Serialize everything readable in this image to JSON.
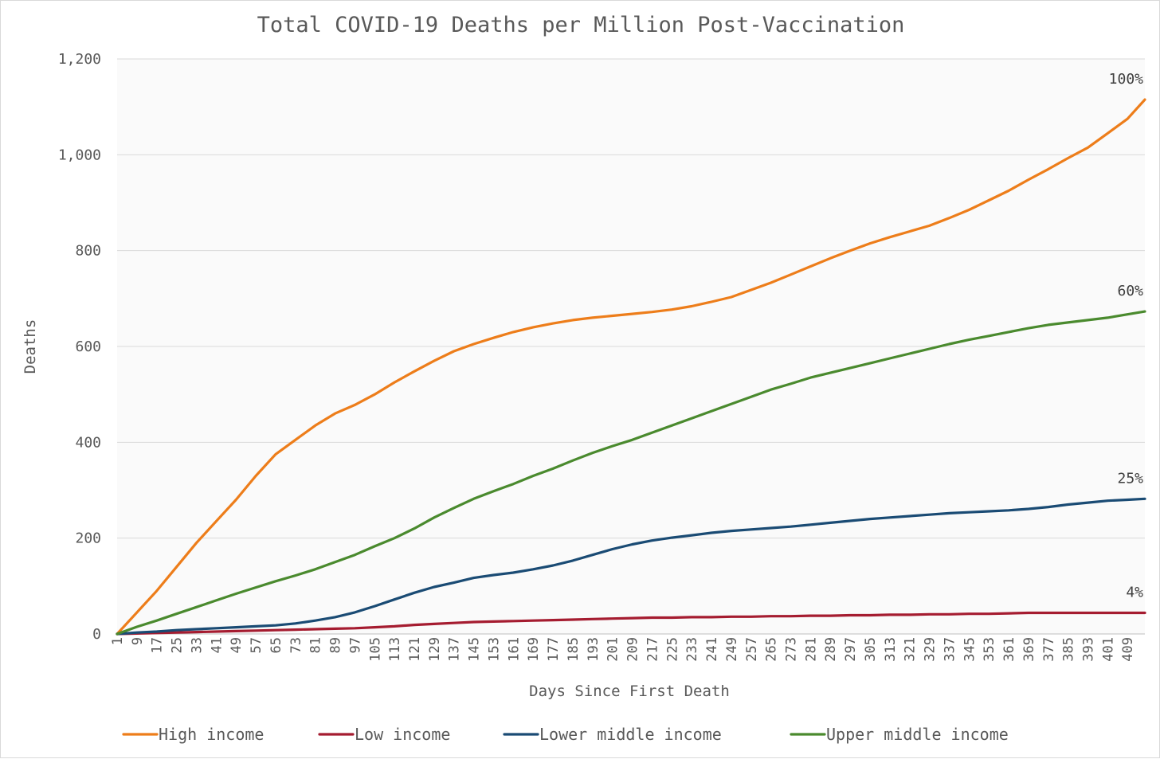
{
  "chart_data": {
    "type": "line",
    "title": "Total COVID-19 Deaths per Million Post-Vaccination",
    "xlabel": "Days Since First Death",
    "ylabel": "Deaths",
    "xlim": [
      1,
      416
    ],
    "ylim": [
      0,
      1200
    ],
    "y_ticks": [
      "0",
      "200",
      "400",
      "600",
      "800",
      "1,000",
      "1,200"
    ],
    "x_ticks": [
      "1",
      "9",
      "17",
      "25",
      "33",
      "41",
      "49",
      "57",
      "65",
      "73",
      "81",
      "89",
      "97",
      "105",
      "113",
      "121",
      "129",
      "137",
      "145",
      "153",
      "161",
      "169",
      "177",
      "185",
      "193",
      "201",
      "209",
      "217",
      "225",
      "233",
      "241",
      "249",
      "257",
      "265",
      "273",
      "281",
      "289",
      "297",
      "305",
      "313",
      "321",
      "329",
      "337",
      "345",
      "353",
      "361",
      "369",
      "377",
      "385",
      "393",
      "401",
      "409"
    ],
    "grid": true,
    "legend_position": "bottom",
    "series": [
      {
        "name": "High income",
        "color": "#ED7D1A",
        "end_label": "100%",
        "x": [
          1,
          9,
          17,
          25,
          33,
          41,
          49,
          57,
          65,
          73,
          81,
          89,
          97,
          105,
          113,
          121,
          129,
          137,
          145,
          153,
          161,
          169,
          177,
          185,
          193,
          201,
          209,
          217,
          225,
          233,
          241,
          249,
          257,
          265,
          273,
          281,
          289,
          297,
          305,
          313,
          321,
          329,
          337,
          345,
          353,
          361,
          369,
          377,
          385,
          393,
          401,
          409,
          416
        ],
        "values": [
          0,
          45,
          90,
          140,
          190,
          235,
          280,
          330,
          375,
          405,
          435,
          460,
          478,
          500,
          525,
          548,
          570,
          590,
          605,
          618,
          630,
          640,
          648,
          655,
          660,
          664,
          668,
          672,
          677,
          684,
          693,
          703,
          718,
          733,
          750,
          767,
          784,
          800,
          815,
          828,
          840,
          852,
          868,
          885,
          905,
          925,
          948,
          970,
          993,
          1015,
          1045,
          1075,
          1115
        ]
      },
      {
        "name": "Low income",
        "color": "#A51C30",
        "end_label": "4%",
        "x": [
          1,
          9,
          17,
          25,
          33,
          41,
          49,
          57,
          65,
          73,
          81,
          89,
          97,
          105,
          113,
          121,
          129,
          137,
          145,
          153,
          161,
          169,
          177,
          185,
          193,
          201,
          209,
          217,
          225,
          233,
          241,
          249,
          257,
          265,
          273,
          281,
          289,
          297,
          305,
          313,
          321,
          329,
          337,
          345,
          353,
          361,
          369,
          377,
          385,
          393,
          401,
          409,
          416
        ],
        "values": [
          0,
          1,
          2,
          3,
          4,
          5,
          6,
          7,
          8,
          9,
          10,
          11,
          12,
          14,
          16,
          19,
          21,
          23,
          25,
          26,
          27,
          28,
          29,
          30,
          31,
          32,
          33,
          34,
          34,
          35,
          35,
          36,
          36,
          37,
          37,
          38,
          38,
          39,
          39,
          40,
          40,
          41,
          41,
          42,
          42,
          43,
          44,
          44,
          44,
          44,
          44,
          44,
          44
        ]
      },
      {
        "name": "Lower middle income",
        "color": "#1A4B74",
        "end_label": "25%",
        "x": [
          1,
          9,
          17,
          25,
          33,
          41,
          49,
          57,
          65,
          73,
          81,
          89,
          97,
          105,
          113,
          121,
          129,
          137,
          145,
          153,
          161,
          169,
          177,
          185,
          193,
          201,
          209,
          217,
          225,
          233,
          241,
          249,
          257,
          265,
          273,
          281,
          289,
          297,
          305,
          313,
          321,
          329,
          337,
          345,
          353,
          361,
          369,
          377,
          385,
          393,
          401,
          409,
          416
        ],
        "values": [
          0,
          3,
          5,
          8,
          10,
          12,
          14,
          16,
          18,
          22,
          28,
          35,
          45,
          58,
          72,
          86,
          98,
          107,
          117,
          123,
          128,
          135,
          143,
          153,
          165,
          177,
          187,
          195,
          201,
          206,
          211,
          215,
          218,
          221,
          224,
          228,
          232,
          236,
          240,
          243,
          246,
          249,
          252,
          254,
          256,
          258,
          261,
          265,
          270,
          274,
          278,
          280,
          282
        ]
      },
      {
        "name": "Upper middle income",
        "color": "#4A8A2E",
        "end_label": "60%",
        "x": [
          1,
          9,
          17,
          25,
          33,
          41,
          49,
          57,
          65,
          73,
          81,
          89,
          97,
          105,
          113,
          121,
          129,
          137,
          145,
          153,
          161,
          169,
          177,
          185,
          193,
          201,
          209,
          217,
          225,
          233,
          241,
          249,
          257,
          265,
          273,
          281,
          289,
          297,
          305,
          313,
          321,
          329,
          337,
          345,
          353,
          361,
          369,
          377,
          385,
          393,
          401,
          409,
          416
        ],
        "values": [
          0,
          15,
          28,
          42,
          56,
          70,
          84,
          97,
          110,
          122,
          135,
          150,
          165,
          183,
          200,
          220,
          243,
          263,
          282,
          298,
          313,
          330,
          345,
          362,
          378,
          392,
          405,
          420,
          435,
          450,
          465,
          480,
          495,
          510,
          522,
          535,
          545,
          555,
          565,
          575,
          585,
          595,
          605,
          614,
          622,
          630,
          638,
          645,
          650,
          655,
          660,
          667,
          673
        ]
      }
    ]
  }
}
